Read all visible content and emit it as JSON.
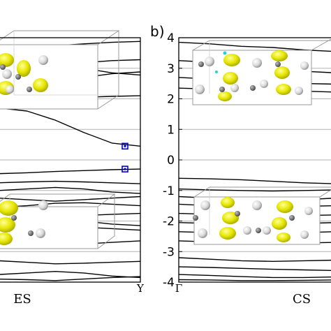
{
  "chart_data": [
    {
      "type": "line",
      "panel_label": "",
      "name_label": "ES",
      "kpath_labels": [
        "",
        "Y"
      ],
      "ylim": [
        -4,
        4
      ],
      "ytick_labels": [],
      "grid": true,
      "inset_images": [
        "orbital-isosurface-structure-upper",
        "orbital-isosurface-structure-lower"
      ],
      "bands": [
        [
          3.05,
          3.08,
          3.12,
          3.18,
          3.25,
          3.28
        ],
        [
          3.55,
          3.4,
          3.2,
          3.0,
          2.85,
          2.78
        ],
        [
          2.35,
          2.5,
          2.62,
          2.7,
          2.82,
          2.88
        ],
        [
          1.9,
          1.95,
          2.0,
          2.05,
          2.08,
          2.1
        ],
        [
          3.7,
          3.72,
          3.74,
          3.8,
          3.85,
          3.88
        ],
        [
          1.7,
          1.6,
          1.3,
          0.9,
          0.55,
          0.45
        ],
        [
          -0.45,
          -0.42,
          -0.38,
          -0.35,
          -0.32,
          -0.3
        ],
        [
          -0.75,
          -0.72,
          -0.7,
          -0.72,
          -0.75,
          -0.78
        ],
        [
          -1.0,
          -0.95,
          -0.9,
          -0.95,
          -1.05,
          -1.1
        ],
        [
          -1.25,
          -1.3,
          -1.35,
          -1.3,
          -1.25,
          -1.2
        ],
        [
          -1.55,
          -1.5,
          -1.42,
          -1.4,
          -1.45,
          -1.5
        ],
        [
          -1.75,
          -1.8,
          -1.85,
          -1.82,
          -1.78,
          -1.75
        ],
        [
          -2.05,
          -2.0,
          -1.95,
          -2.0,
          -2.1,
          -2.15
        ],
        [
          -2.4,
          -2.35,
          -2.25,
          -2.2,
          -2.25,
          -2.3
        ],
        [
          -2.7,
          -2.75,
          -2.8,
          -2.75,
          -2.7,
          -2.65
        ],
        [
          -3.3,
          -3.35,
          -3.4,
          -3.38,
          -3.35,
          -3.32
        ],
        [
          -3.75,
          -3.7,
          -3.65,
          -3.7,
          -3.8,
          -3.85
        ],
        [
          -3.9,
          -3.92,
          -3.95,
          -3.9,
          -3.85,
          -3.82
        ]
      ],
      "markers": [
        {
          "x": 1.0,
          "y": 0.45
        },
        {
          "x": 1.0,
          "y": -0.3
        }
      ]
    },
    {
      "type": "line",
      "panel_label": "b)",
      "name_label": "CS",
      "kpath_labels": [
        "Γ",
        ""
      ],
      "ylim": [
        -4,
        4
      ],
      "ytick_labels": [
        "4",
        "3",
        "2",
        "1",
        "0",
        "-1",
        "-2",
        "-3",
        "-4"
      ],
      "grid": true,
      "inset_images": [
        "orbital-isosurface-structure-upper",
        "orbital-isosurface-structure-lower"
      ],
      "bands": [
        [
          3.85,
          3.8,
          3.72,
          3.68,
          3.6,
          3.55
        ],
        [
          3.25,
          3.2,
          3.1,
          3.0,
          2.9,
          2.85
        ],
        [
          2.7,
          2.65,
          2.58,
          2.55,
          2.5,
          2.48
        ],
        [
          2.35,
          2.32,
          2.3,
          2.28,
          2.25,
          2.22
        ],
        [
          -0.6,
          -0.62,
          -0.65,
          -0.7,
          -0.75,
          -0.78
        ],
        [
          -0.95,
          -0.98,
          -1.0,
          -1.02,
          -1.0,
          -0.98
        ],
        [
          -1.2,
          -1.25,
          -1.3,
          -1.32,
          -1.3,
          -1.25
        ],
        [
          -1.45,
          -1.5,
          -1.55,
          -1.55,
          -1.52,
          -1.5
        ],
        [
          -1.75,
          -1.78,
          -1.8,
          -1.82,
          -1.82,
          -1.8
        ],
        [
          -2.05,
          -2.08,
          -2.1,
          -2.1,
          -2.08,
          -2.05
        ],
        [
          -2.35,
          -2.38,
          -2.4,
          -2.4,
          -2.38,
          -2.35
        ],
        [
          -2.65,
          -2.68,
          -2.7,
          -2.72,
          -2.72,
          -2.7
        ],
        [
          -3.2,
          -3.25,
          -3.3,
          -3.32,
          -3.3,
          -3.28
        ],
        [
          -3.5,
          -3.52,
          -3.55,
          -3.58,
          -3.6,
          -3.62
        ],
        [
          -3.75,
          -3.78,
          -3.82,
          -3.85,
          -3.85,
          -3.83
        ],
        [
          -3.92,
          -3.93,
          -3.95,
          -3.95,
          -3.94,
          -3.93
        ]
      ],
      "markers": []
    }
  ]
}
